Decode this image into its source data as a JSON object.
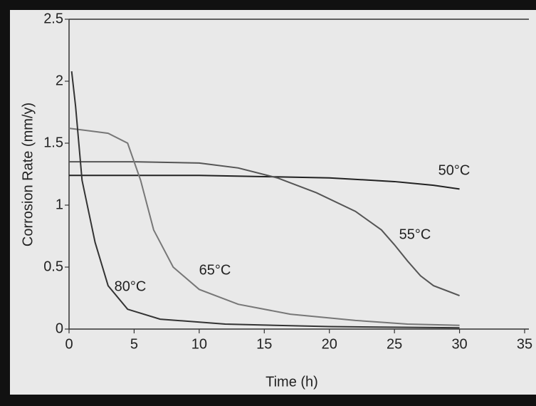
{
  "chart_data": {
    "type": "line",
    "xlabel": "Time (h)",
    "ylabel": "Corrosion Rate (mm/y)",
    "xlim": [
      0,
      35
    ],
    "xticks": [
      0,
      5,
      10,
      15,
      20,
      25,
      30,
      35
    ],
    "ylim": [
      0,
      2.5
    ],
    "yticks": [
      0,
      0.5,
      1,
      1.5,
      2,
      2.5
    ],
    "series": [
      {
        "name": "50°C",
        "color": "#222222",
        "x": [
          0,
          5,
          10,
          15,
          20,
          25,
          28,
          30
        ],
        "values": [
          1.24,
          1.24,
          1.24,
          1.23,
          1.22,
          1.19,
          1.16,
          1.13
        ]
      },
      {
        "name": "55°C",
        "color": "#555555",
        "x": [
          0,
          5,
          10,
          13,
          16,
          19,
          22,
          24,
          25,
          26,
          27,
          28,
          30
        ],
        "values": [
          1.35,
          1.35,
          1.34,
          1.3,
          1.22,
          1.1,
          0.95,
          0.8,
          0.68,
          0.55,
          0.43,
          0.35,
          0.27
        ]
      },
      {
        "name": "65°C",
        "color": "#777777",
        "x": [
          0,
          3,
          4.5,
          5.5,
          6.5,
          8,
          10,
          13,
          17,
          22,
          26,
          30
        ],
        "values": [
          1.62,
          1.58,
          1.5,
          1.2,
          0.8,
          0.5,
          0.32,
          0.2,
          0.12,
          0.07,
          0.04,
          0.03
        ]
      },
      {
        "name": "80°C",
        "color": "#333333",
        "x": [
          0.2,
          0.5,
          1,
          2,
          3,
          4.5,
          7,
          12,
          20,
          30
        ],
        "values": [
          2.08,
          1.8,
          1.2,
          0.7,
          0.35,
          0.16,
          0.08,
          0.04,
          0.02,
          0.01
        ]
      }
    ]
  }
}
